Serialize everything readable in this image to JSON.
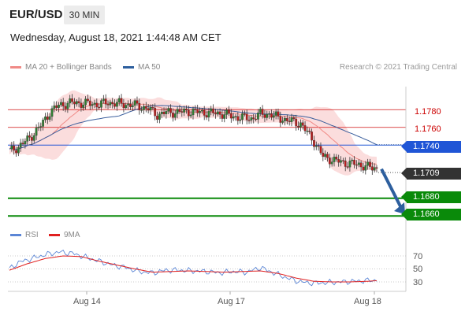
{
  "header": {
    "symbol": "EUR/USD",
    "timeframe": "30 MIN",
    "datetime": "Wednesday, August 18, 2021 1:44:48 AM CET"
  },
  "legend": {
    "items": [
      {
        "label": "MA 20 + Bollinger Bands",
        "color": "#f08a86"
      },
      {
        "label": "MA 50",
        "color": "#2d5f9e"
      }
    ],
    "source": "Research © 2021 Trading Central"
  },
  "levels": {
    "resistance": [
      "1.1780",
      "1.1760"
    ],
    "pivot": "1.1740",
    "last_price": "1.1709",
    "supports": [
      "1.1680",
      "1.1660"
    ]
  },
  "rsi": {
    "legend": [
      {
        "label": "RSI",
        "color": "#5b86d6"
      },
      {
        "label": "9MA",
        "color": "#e02020"
      }
    ],
    "ticks": [
      "70",
      "50",
      "30"
    ]
  },
  "xaxis": {
    "labels": [
      "Aug 14",
      "Aug 17",
      "Aug 18"
    ]
  },
  "colors": {
    "resistance": "#d01010",
    "pivot": "#1f55d6",
    "support": "#0a8a0a",
    "price_badge": "#333333",
    "arrow": "#2d5f9e",
    "bollinger_fill": "#fbd9d9"
  },
  "chart_data": {
    "type": "candlestick",
    "price_range": [
      1.1646,
      1.1806
    ],
    "levels": {
      "resistance": [
        1.178,
        1.176
      ],
      "pivot": 1.174,
      "supports": [
        1.168,
        1.166
      ],
      "last": 1.1709
    },
    "close_path": [
      [
        0,
        1.1733
      ],
      [
        4,
        1.1738
      ],
      [
        9,
        1.1748
      ],
      [
        14,
        1.1762
      ],
      [
        18,
        1.1777
      ],
      [
        22,
        1.1785
      ],
      [
        28,
        1.1788
      ],
      [
        34,
        1.1787
      ],
      [
        40,
        1.1786
      ],
      [
        44,
        1.1788
      ],
      [
        48,
        1.1787
      ],
      [
        52,
        1.1786
      ],
      [
        56,
        1.1785
      ],
      [
        62,
        1.1781
      ],
      [
        66,
        1.1774
      ],
      [
        70,
        1.1777
      ],
      [
        74,
        1.1777
      ],
      [
        80,
        1.1778
      ],
      [
        86,
        1.1777
      ],
      [
        92,
        1.1776
      ],
      [
        96,
        1.1775
      ],
      [
        100,
        1.1772
      ],
      [
        104,
        1.1771
      ],
      [
        108,
        1.177
      ],
      [
        112,
        1.1775
      ],
      [
        116,
        1.1775
      ],
      [
        120,
        1.1771
      ],
      [
        124,
        1.1768
      ],
      [
        130,
        1.1764
      ],
      [
        136,
        1.1744
      ],
      [
        140,
        1.1727
      ],
      [
        146,
        1.1722
      ],
      [
        150,
        1.172
      ],
      [
        156,
        1.1718
      ],
      [
        162,
        1.1714
      ],
      [
        164,
        1.1714
      ]
    ],
    "rsi_ticks": [
      70,
      50,
      30
    ],
    "rsi_path": [
      [
        0,
        50
      ],
      [
        4,
        60
      ],
      [
        10,
        66
      ],
      [
        16,
        72
      ],
      [
        22,
        76
      ],
      [
        28,
        74
      ],
      [
        34,
        68
      ],
      [
        40,
        62
      ],
      [
        46,
        56
      ],
      [
        52,
        52
      ],
      [
        58,
        46
      ],
      [
        64,
        44
      ],
      [
        70,
        48
      ],
      [
        76,
        48
      ],
      [
        82,
        47
      ],
      [
        88,
        46
      ],
      [
        94,
        44
      ],
      [
        100,
        46
      ],
      [
        106,
        45
      ],
      [
        112,
        52
      ],
      [
        118,
        44
      ],
      [
        124,
        36
      ],
      [
        130,
        30
      ],
      [
        136,
        28
      ],
      [
        142,
        29
      ],
      [
        148,
        30
      ],
      [
        154,
        31
      ],
      [
        160,
        32
      ],
      [
        164,
        33
      ]
    ],
    "rsi_ma_path": [
      [
        0,
        48
      ],
      [
        8,
        58
      ],
      [
        16,
        66
      ],
      [
        24,
        70
      ],
      [
        32,
        69
      ],
      [
        40,
        62
      ],
      [
        48,
        56
      ],
      [
        56,
        50
      ],
      [
        64,
        45
      ],
      [
        72,
        46
      ],
      [
        80,
        47
      ],
      [
        88,
        46
      ],
      [
        96,
        45
      ],
      [
        104,
        46
      ],
      [
        112,
        47
      ],
      [
        120,
        43
      ],
      [
        128,
        36
      ],
      [
        136,
        31
      ],
      [
        144,
        30
      ],
      [
        152,
        30
      ],
      [
        160,
        31
      ],
      [
        164,
        32
      ]
    ],
    "xlabels": [
      "Aug 14",
      "Aug 17",
      "Aug 18"
    ]
  }
}
